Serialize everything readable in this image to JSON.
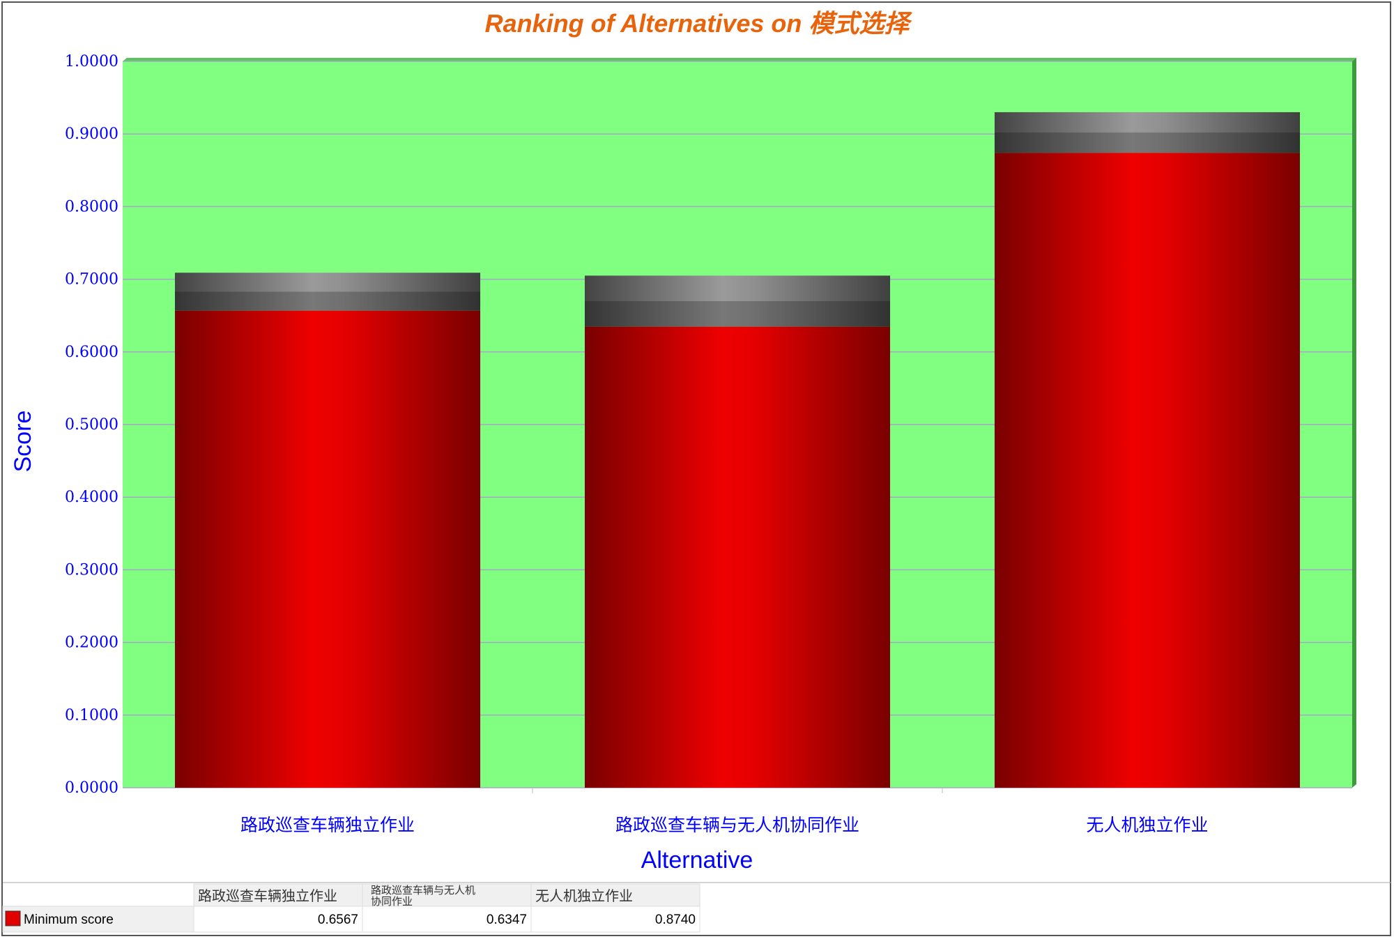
{
  "chart_data": {
    "type": "bar",
    "title": "Ranking of Alternatives on 模式选择",
    "xlabel": "Alternative",
    "ylabel": "Score",
    "ylim": [
      0,
      1
    ],
    "y_ticks": [
      "0.0000",
      "0.1000",
      "0.2000",
      "0.3000",
      "0.4000",
      "0.5000",
      "0.6000",
      "0.7000",
      "0.8000",
      "0.9000",
      "1.0000"
    ],
    "categories": [
      "路政巡查车辆独立作业",
      "路政巡查车辆与无人机协同作业",
      "无人机独立作业"
    ],
    "series": [
      {
        "name": "Minimum score",
        "values": [
          0.6567,
          0.6347,
          0.874
        ]
      }
    ],
    "caps_top": [
      0.709,
      0.705,
      0.93
    ],
    "grid": true,
    "legend": "bottom-left data table",
    "colors": {
      "plot_bg": "#80ff80",
      "bar": "#e00000",
      "cap": "#777777",
      "title": "#e8640c",
      "axis_text": "#0000ff"
    }
  },
  "data_table": {
    "headers": [
      "路政巡查车辆独立作业",
      "路政巡查车辆与无人机\n协同作业",
      "无人机独立作业"
    ],
    "row_label": "Minimum score",
    "row_values": [
      "0.6567",
      "0.6347",
      "0.8740"
    ]
  }
}
